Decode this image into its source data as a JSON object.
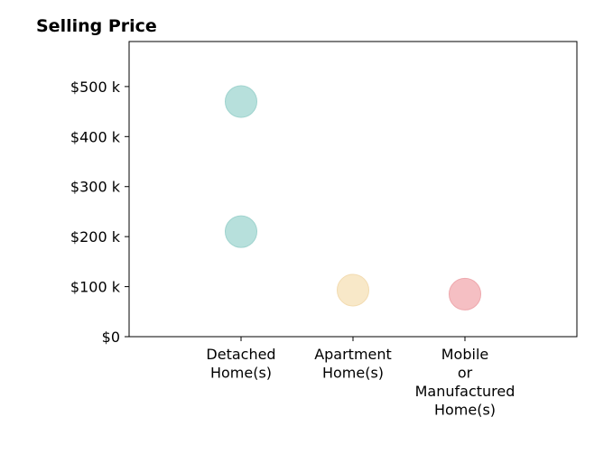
{
  "chart_data": {
    "type": "scatter",
    "title": "Selling Price",
    "xlabel": "",
    "ylabel": "",
    "ylim": [
      0,
      590000
    ],
    "grid": false,
    "legend": "none",
    "categories": [
      {
        "lines": [
          "Detached",
          "Home(s)"
        ]
      },
      {
        "lines": [
          "Apartment",
          "Home(s)"
        ]
      },
      {
        "lines": [
          "Mobile",
          "or",
          "Manufactured",
          "Home(s)"
        ]
      }
    ],
    "yticks": [
      {
        "value": 0,
        "label": "$0"
      },
      {
        "value": 100000,
        "label": "$100 k"
      },
      {
        "value": 200000,
        "label": "$200 k"
      },
      {
        "value": 300000,
        "label": "$300 k"
      },
      {
        "value": 400000,
        "label": "$400 k"
      },
      {
        "value": 500000,
        "label": "$500 k"
      }
    ],
    "points": [
      {
        "category": 0,
        "y": 470000,
        "color": "#b7e0dc",
        "stroke": "#9fd3ce"
      },
      {
        "category": 0,
        "y": 210000,
        "color": "#b7e0dc",
        "stroke": "#9fd3ce"
      },
      {
        "category": 1,
        "y": 93000,
        "color": "#f8e8c8",
        "stroke": "#f2dbb0"
      },
      {
        "category": 2,
        "y": 85000,
        "color": "#f5bfc3",
        "stroke": "#eea8ad"
      }
    ]
  }
}
